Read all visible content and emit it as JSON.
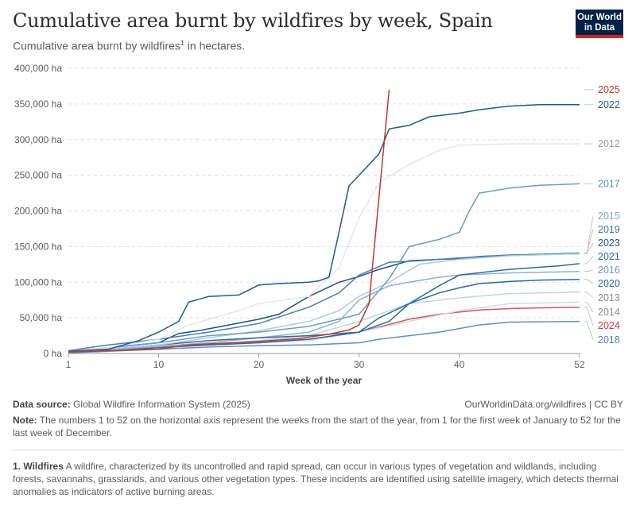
{
  "header": {
    "title": "Cumulative area burnt by wildfires by week, Spain",
    "subtitle": "Cumulative area burnt by wildfires",
    "subtitle_sup": "1",
    "subtitle_suffix": " in hectares.",
    "logo_line1": "Our World",
    "logo_line2": "in Data"
  },
  "footer": {
    "source_label": "Data source:",
    "source_text": " Global Wildfire Information System (2025)",
    "link_text": "OurWorldinData.org/wildfires | CC BY",
    "note_label": "Note:",
    "note_text": " The numbers 1 to 52 on the horizontal axis represent the weeks from the start of the year, from 1 for the first week of January to 52 for the last week of December.",
    "footnote_label": "1. Wildfires",
    "footnote_text": " A wildfire, characterized by its uncontrolled and rapid spread, can occur in various types of vegetation and wildlands, including forests, savannahs, grasslands, and various other vegetation types. These incidents are identified using satellite imagery, which detects thermal anomalies as indicators of active burning areas."
  },
  "chart_data": {
    "type": "line",
    "xlabel": "Week of the year",
    "ylabel": "",
    "xlim": [
      1,
      52
    ],
    "ylim": [
      0,
      400000
    ],
    "x_ticks": [
      1,
      10,
      20,
      30,
      40,
      52
    ],
    "y_ticks": [
      0,
      50000,
      100000,
      150000,
      200000,
      250000,
      300000,
      350000,
      400000
    ],
    "y_tick_labels": [
      "0 ha",
      "50,000 ha",
      "100,000 ha",
      "150,000 ha",
      "200,000 ha",
      "250,000 ha",
      "300,000 ha",
      "350,000 ha",
      "400,000 ha"
    ],
    "grid": "horizontal",
    "legend": "right-end-labels",
    "series": [
      {
        "name": "2025",
        "color": "#c0392b",
        "x": [
          1,
          5,
          10,
          13,
          20,
          24,
          27,
          29,
          30,
          31,
          32,
          33
        ],
        "y": [
          2000,
          4000,
          6000,
          12000,
          17000,
          21000,
          27000,
          33000,
          40000,
          70000,
          220000,
          370000
        ]
      },
      {
        "name": "2022",
        "color": "#1f5b8f",
        "x": [
          1,
          5,
          8,
          10,
          12,
          13,
          15,
          18,
          20,
          22,
          25,
          26,
          27,
          28,
          29,
          30,
          31,
          32,
          33,
          35,
          37,
          40,
          42,
          45,
          48,
          52
        ],
        "y": [
          3000,
          6000,
          18000,
          30000,
          45000,
          72000,
          80000,
          82000,
          96000,
          98000,
          100000,
          102000,
          107000,
          170000,
          235000,
          250000,
          265000,
          280000,
          315000,
          320000,
          332000,
          337000,
          342000,
          347000,
          349000,
          349000
        ]
      },
      {
        "name": "2012",
        "color": "#e2e7ee",
        "x": [
          1,
          5,
          10,
          13,
          18,
          20,
          25,
          28,
          30,
          32,
          35,
          38,
          40,
          45,
          52
        ],
        "y": [
          3000,
          8000,
          20000,
          40000,
          60000,
          70000,
          80000,
          120000,
          190000,
          240000,
          265000,
          285000,
          292000,
          294000,
          294000
        ]
      },
      {
        "name": "2017",
        "color": "#6b9bc7",
        "x": [
          1,
          5,
          10,
          15,
          20,
          25,
          30,
          33,
          35,
          38,
          40,
          41,
          42,
          45,
          48,
          52
        ],
        "y": [
          3000,
          8000,
          15000,
          25000,
          30000,
          38000,
          55000,
          105000,
          150000,
          160000,
          170000,
          200000,
          225000,
          232000,
          236000,
          238000
        ]
      },
      {
        "name": "2015",
        "color": "#b4c8dc",
        "x": [
          1,
          5,
          10,
          15,
          20,
          25,
          28,
          30,
          33,
          36,
          40,
          45,
          52
        ],
        "y": [
          2000,
          6000,
          12000,
          22000,
          32000,
          45000,
          60000,
          80000,
          100000,
          125000,
          132000,
          137000,
          140000
        ]
      },
      {
        "name": "2019",
        "color": "#4a7eb0",
        "x": [
          1,
          5,
          10,
          15,
          20,
          25,
          28,
          30,
          33,
          36,
          40,
          45,
          52
        ],
        "y": [
          4000,
          12000,
          20000,
          30000,
          42000,
          65000,
          85000,
          110000,
          128000,
          130000,
          134000,
          138000,
          141000
        ]
      },
      {
        "name": "2023",
        "color": "#1e4f86",
        "x": [
          1,
          5,
          10,
          12,
          14,
          17,
          20,
          22,
          25,
          28,
          30,
          32,
          35,
          38,
          40,
          42,
          45,
          52
        ],
        "y": [
          3000,
          8000,
          15000,
          28000,
          32000,
          40000,
          48000,
          55000,
          80000,
          100000,
          108000,
          118000,
          130000,
          132000,
          133000,
          136000,
          138000,
          140000
        ]
      },
      {
        "name": "2021",
        "color": "#2d6aa3",
        "x": [
          1,
          5,
          10,
          15,
          20,
          25,
          30,
          33,
          35,
          38,
          40,
          45,
          50,
          52
        ],
        "y": [
          3000,
          6000,
          12000,
          18000,
          22000,
          25000,
          30000,
          45000,
          70000,
          95000,
          110000,
          118000,
          123000,
          126000
        ]
      },
      {
        "name": "2016",
        "color": "#8fb0d0",
        "x": [
          1,
          5,
          10,
          15,
          20,
          25,
          28,
          30,
          33,
          35,
          38,
          40,
          45,
          52
        ],
        "y": [
          2000,
          5000,
          10000,
          15000,
          22000,
          30000,
          45000,
          75000,
          95000,
          100000,
          107000,
          110000,
          113000,
          115000
        ]
      },
      {
        "name": "2020",
        "color": "#2b68a1",
        "x": [
          1,
          5,
          10,
          15,
          20,
          25,
          30,
          32,
          35,
          38,
          40,
          42,
          45,
          48,
          52
        ],
        "y": [
          2000,
          4000,
          8000,
          12000,
          15000,
          20000,
          30000,
          50000,
          70000,
          85000,
          92000,
          98000,
          101000,
          103000,
          104000
        ]
      },
      {
        "name": "2013",
        "color": "#c4d3e3",
        "x": [
          1,
          5,
          10,
          15,
          20,
          25,
          30,
          35,
          40,
          45,
          52
        ],
        "y": [
          2000,
          4000,
          8000,
          12000,
          18000,
          25000,
          45000,
          70000,
          78000,
          84000,
          86000
        ]
      },
      {
        "name": "2014",
        "color": "#d1dce8",
        "x": [
          1,
          5,
          10,
          15,
          20,
          25,
          30,
          35,
          40,
          45,
          52
        ],
        "y": [
          2000,
          4000,
          8000,
          12000,
          15000,
          18000,
          30000,
          45000,
          60000,
          70000,
          72000
        ]
      },
      {
        "name": "2024",
        "color": "#d35560",
        "x": [
          1,
          5,
          10,
          15,
          20,
          25,
          30,
          35,
          38,
          40,
          42,
          45,
          48,
          52
        ],
        "y": [
          2000,
          5000,
          9000,
          12000,
          15000,
          20000,
          30000,
          48000,
          55000,
          58000,
          61000,
          63000,
          64000,
          65000
        ]
      },
      {
        "name": "2018",
        "color": "#5f8fbd",
        "x": [
          1,
          5,
          10,
          15,
          20,
          25,
          30,
          32,
          35,
          38,
          40,
          42,
          45,
          52
        ],
        "y": [
          1000,
          3000,
          6000,
          9000,
          11000,
          12000,
          15000,
          20000,
          25000,
          30000,
          35000,
          40000,
          44000,
          45000
        ]
      }
    ],
    "end_labels": [
      {
        "name": "2025",
        "color": "#c0392b",
        "y": 370000
      },
      {
        "name": "2022",
        "color": "#1f5b8f",
        "y": 349000
      },
      {
        "name": "2012",
        "color": "#999999",
        "y": 294000
      },
      {
        "name": "2017",
        "color": "#5c8dba",
        "y": 238000
      },
      {
        "name": "2015",
        "color": "#8aa8c8",
        "y": 193000
      },
      {
        "name": "2019",
        "color": "#3f76ab",
        "y": 174000
      },
      {
        "name": "2023",
        "color": "#1e4f86",
        "y": 155000
      },
      {
        "name": "2021",
        "color": "#2d6aa3",
        "y": 136000
      },
      {
        "name": "2016",
        "color": "#6f97bf",
        "y": 117000
      },
      {
        "name": "2020",
        "color": "#2b68a1",
        "y": 98000
      },
      {
        "name": "2013",
        "color": "#8c8c8c",
        "y": 78000
      },
      {
        "name": "2014",
        "color": "#8c8c8c",
        "y": 58000
      },
      {
        "name": "2024",
        "color": "#c23b46",
        "y": 39000
      },
      {
        "name": "2018",
        "color": "#4f83b5",
        "y": 19000
      }
    ]
  }
}
